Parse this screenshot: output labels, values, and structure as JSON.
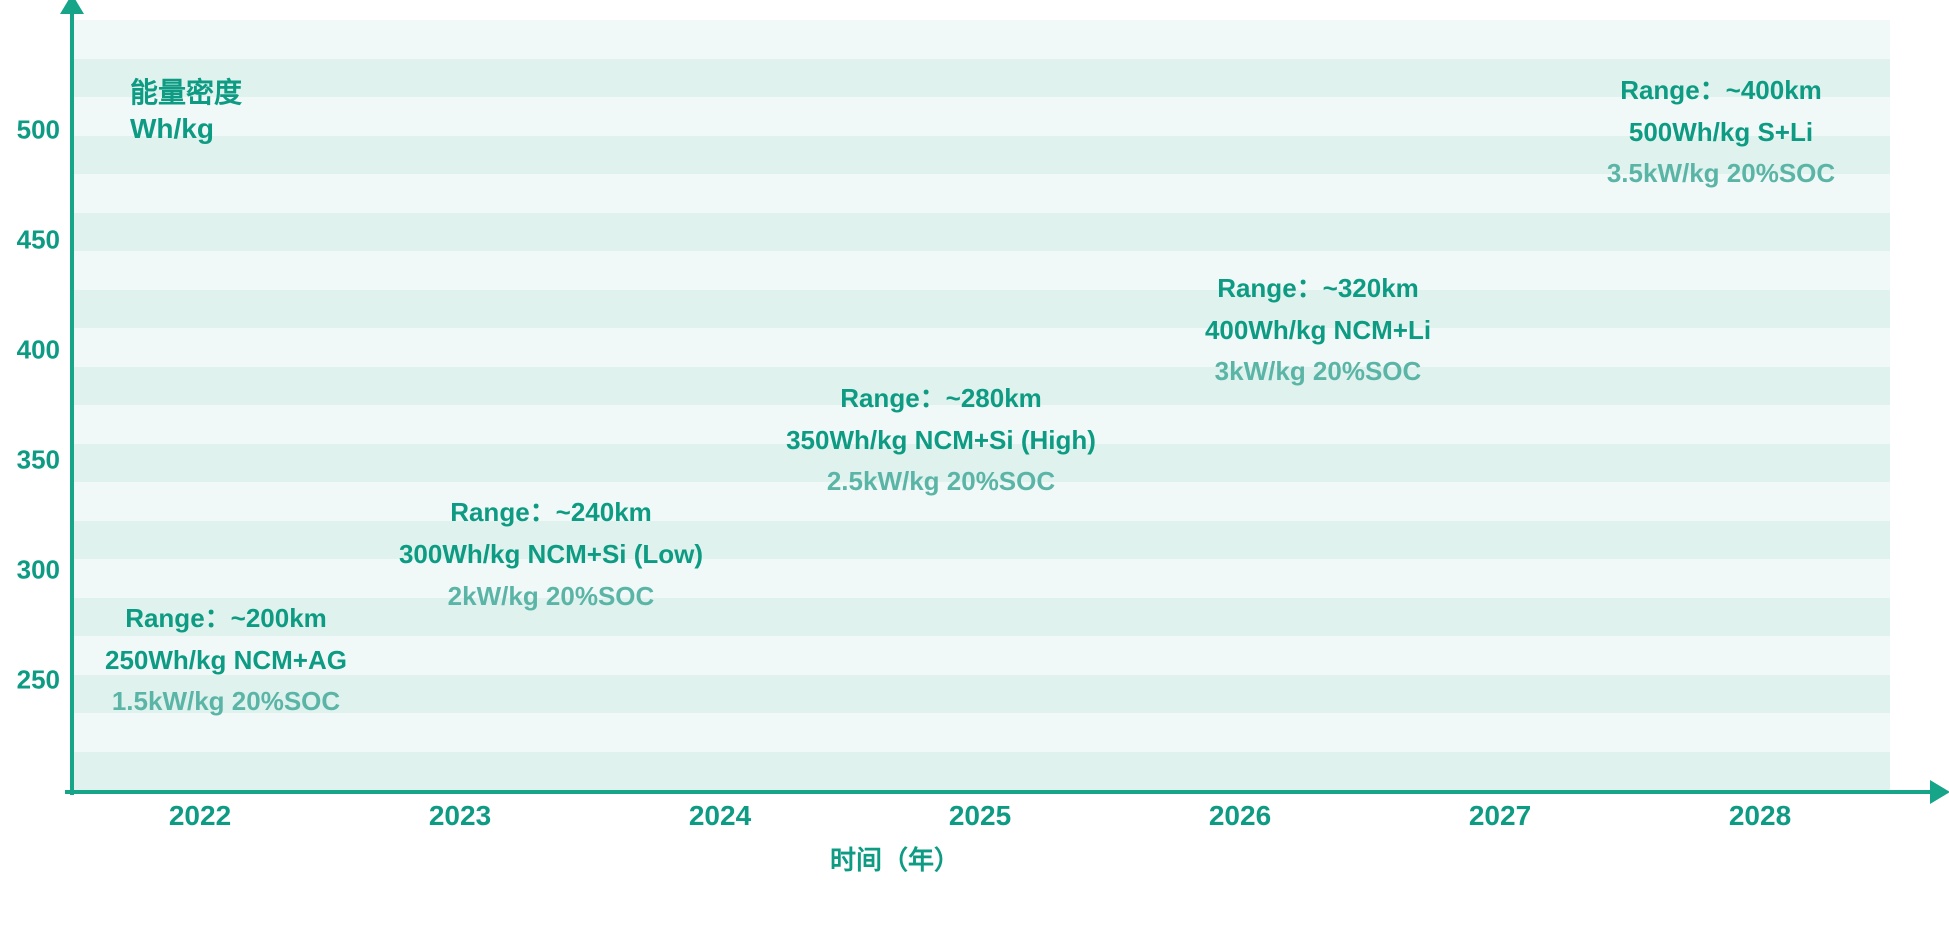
{
  "chart": {
    "type": "annotated-timeline",
    "background_color": "#ffffff",
    "band_light_color": "#f0f9f7",
    "band_dark_color": "#dff2ed",
    "axis_color": "#17a589",
    "primary_text_color": "#0e9b83",
    "secondary_text_color": "#5bb5a7",
    "axis_line_width": 4,
    "y_axis": {
      "title_line1": "能量密度",
      "title_line2": "Wh/kg",
      "min": 200,
      "max": 550,
      "tick_step": 50,
      "ticks": [
        250,
        300,
        350,
        400,
        450,
        500
      ]
    },
    "x_axis": {
      "title": "时间（年）",
      "min": 2021.5,
      "max": 2028.5,
      "ticks": [
        2022,
        2023,
        2024,
        2025,
        2026,
        2027,
        2028
      ]
    },
    "band_rows": 20,
    "nodes": [
      {
        "x_year": 2022.1,
        "y_value": 260,
        "line1": "Range：~200km",
        "line2": "250Wh/kg NCM+AG",
        "line3": "1.5kW/kg 20%SOC"
      },
      {
        "x_year": 2023.35,
        "y_value": 308,
        "line1": "Range：~240km",
        "line2": "300Wh/kg NCM+Si (Low)",
        "line3": "2kW/kg 20%SOC"
      },
      {
        "x_year": 2024.85,
        "y_value": 360,
        "line1": "Range：~280km",
        "line2": "350Wh/kg NCM+Si (High)",
        "line3": "2.5kW/kg 20%SOC"
      },
      {
        "x_year": 2026.3,
        "y_value": 410,
        "line1": "Range：~320km",
        "line2": "400Wh/kg NCM+Li",
        "line3": "3kW/kg 20%SOC"
      },
      {
        "x_year": 2027.85,
        "y_value": 500,
        "line1": "Range：~400km",
        "line2": "500Wh/kg S+Li",
        "line3": "3.5kW/kg 20%SOC"
      }
    ]
  }
}
